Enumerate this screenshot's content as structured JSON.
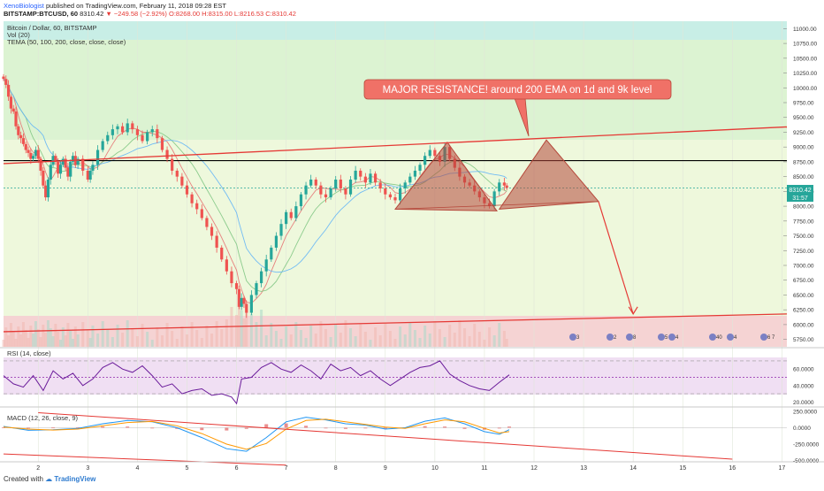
{
  "header": {
    "author": "XenoBiologist",
    "published_text": "published on TradingView.com, February 11, 2018 09:28 EST",
    "symbol": "BITSTAMP:BTCUSD, 60",
    "last": "8310.42",
    "change": "−249.58 (−2.92%)",
    "ohlc": "O:8268.00 H:8315.00 L:8216.53 C:8310.42"
  },
  "legend": {
    "title": "Bitcoin / Dollar, 60, BITSTAMP",
    "vol": "Vol (20)",
    "tema": "TEMA (50, 100, 200, close, close, close)"
  },
  "annotation": "MAJOR RESISTANCE! around 200 EMA on 1d and 9k level",
  "price_axis": {
    "ticks": [
      "11000.00",
      "10750.00",
      "10500.00",
      "10250.00",
      "10000.00",
      "9750.00",
      "9500.00",
      "9250.00",
      "9000.00",
      "8750.00",
      "8500.00",
      "8250.00",
      "8000.00",
      "7750.00",
      "7500.00",
      "7250.00",
      "7000.00",
      "6750.00",
      "6500.00",
      "6250.00",
      "6000.00",
      "5750.00"
    ],
    "last_label": "8310.42",
    "countdown": "31:57"
  },
  "rsi": {
    "title": "RSI (14, close)",
    "ticks": [
      "60.0000",
      "40.0000",
      "20.0000"
    ]
  },
  "macd": {
    "title": "MACD (12, 26, close, 9)",
    "ticks": [
      "250.0000",
      "0.0000",
      "-250.0000",
      "-500.0000"
    ]
  },
  "time_axis": [
    "2",
    "3",
    "4",
    "5",
    "6",
    "7",
    "8",
    "9",
    "10",
    "11",
    "12",
    "13",
    "14",
    "15",
    "16",
    "17"
  ],
  "events": [
    "3",
    "2",
    "8",
    "5",
    "4",
    "40",
    "4",
    "6 7"
  ],
  "footer": {
    "created": "Created with",
    "brand": "TradingView"
  },
  "colors": {
    "bull": "#26a69a",
    "bear": "#ef5350",
    "annotation_bg": "#f07167",
    "pattern": "#b5473a",
    "rsi": "#6a1b9a",
    "macd": "#2196f3",
    "signal": "#ff9800"
  },
  "chart_data": {
    "type": "candlestick",
    "y_range": [
      5625,
      11125
    ],
    "x_range": [
      1.3,
      17.1
    ],
    "closes": [
      [
        1.3,
        10150
      ],
      [
        1.35,
        10050
      ],
      [
        1.4,
        9850
      ],
      [
        1.45,
        9650
      ],
      [
        1.5,
        9600
      ],
      [
        1.55,
        9350
      ],
      [
        1.6,
        9200
      ],
      [
        1.65,
        9150
      ],
      [
        1.7,
        9050
      ],
      [
        1.75,
        8950
      ],
      [
        1.8,
        8900
      ],
      [
        1.85,
        8800
      ],
      [
        1.9,
        8850
      ],
      [
        1.95,
        8950
      ],
      [
        2.0,
        8800
      ],
      [
        2.05,
        8600
      ],
      [
        2.1,
        8350
      ],
      [
        2.15,
        8150
      ],
      [
        2.2,
        8450
      ],
      [
        2.25,
        8700
      ],
      [
        2.3,
        8850
      ],
      [
        2.35,
        8750
      ],
      [
        2.4,
        8550
      ],
      [
        2.45,
        8700
      ],
      [
        2.5,
        8800
      ],
      [
        2.55,
        8650
      ],
      [
        2.6,
        8500
      ],
      [
        2.65,
        8750
      ],
      [
        2.7,
        8850
      ],
      [
        2.75,
        8700
      ],
      [
        2.8,
        8800
      ],
      [
        2.9,
        8600
      ],
      [
        3.0,
        8450
      ],
      [
        3.05,
        8600
      ],
      [
        3.1,
        8700
      ],
      [
        3.2,
        8950
      ],
      [
        3.3,
        9100
      ],
      [
        3.4,
        9200
      ],
      [
        3.5,
        9300
      ],
      [
        3.6,
        9350
      ],
      [
        3.7,
        9250
      ],
      [
        3.8,
        9400
      ],
      [
        3.9,
        9300
      ],
      [
        4.0,
        9200
      ],
      [
        4.1,
        9100
      ],
      [
        4.2,
        9250
      ],
      [
        4.3,
        9300
      ],
      [
        4.4,
        9150
      ],
      [
        4.5,
        8950
      ],
      [
        4.6,
        8800
      ],
      [
        4.7,
        8600
      ],
      [
        4.8,
        8500
      ],
      [
        4.9,
        8350
      ],
      [
        5.0,
        8200
      ],
      [
        5.1,
        8050
      ],
      [
        5.2,
        7950
      ],
      [
        5.3,
        7800
      ],
      [
        5.4,
        7650
      ],
      [
        5.5,
        7500
      ],
      [
        5.6,
        7300
      ],
      [
        5.7,
        7100
      ],
      [
        5.8,
        6900
      ],
      [
        5.9,
        6700
      ],
      [
        6.0,
        6600
      ],
      [
        6.05,
        6300
      ],
      [
        6.1,
        6450
      ],
      [
        6.15,
        6350
      ],
      [
        6.2,
        6200
      ],
      [
        6.3,
        6500
      ],
      [
        6.4,
        6700
      ],
      [
        6.5,
        6900
      ],
      [
        6.6,
        7100
      ],
      [
        6.7,
        7300
      ],
      [
        6.8,
        7500
      ],
      [
        6.9,
        7700
      ],
      [
        7.0,
        7900
      ],
      [
        7.1,
        7800
      ],
      [
        7.2,
        8000
      ],
      [
        7.3,
        8200
      ],
      [
        7.4,
        8350
      ],
      [
        7.5,
        8450
      ],
      [
        7.6,
        8350
      ],
      [
        7.7,
        8200
      ],
      [
        7.8,
        8150
      ],
      [
        7.9,
        8300
      ],
      [
        8.0,
        8450
      ],
      [
        8.1,
        8300
      ],
      [
        8.2,
        8200
      ],
      [
        8.3,
        8450
      ],
      [
        8.4,
        8600
      ],
      [
        8.5,
        8500
      ],
      [
        8.6,
        8400
      ],
      [
        8.7,
        8550
      ],
      [
        8.8,
        8400
      ],
      [
        8.9,
        8300
      ],
      [
        9.0,
        8200
      ],
      [
        9.1,
        8150
      ],
      [
        9.2,
        8100
      ],
      [
        9.3,
        8300
      ],
      [
        9.4,
        8400
      ],
      [
        9.5,
        8500
      ],
      [
        9.6,
        8600
      ],
      [
        9.7,
        8700
      ],
      [
        9.8,
        8850
      ],
      [
        9.9,
        8950
      ],
      [
        10.0,
        8850
      ],
      [
        10.1,
        8750
      ],
      [
        10.2,
        9000
      ],
      [
        10.3,
        8800
      ],
      [
        10.4,
        8650
      ],
      [
        10.5,
        8500
      ],
      [
        10.6,
        8400
      ],
      [
        10.7,
        8350
      ],
      [
        10.8,
        8250
      ],
      [
        10.9,
        8150
      ],
      [
        11.0,
        8050
      ],
      [
        11.1,
        8000
      ],
      [
        11.2,
        8250
      ],
      [
        11.3,
        8400
      ],
      [
        11.4,
        8350
      ],
      [
        11.45,
        8310
      ]
    ],
    "tema_lines": {
      "tema_50_color": "#e57373",
      "tema_100_color": "#81c784",
      "tema_200_color": "#64b5f6"
    },
    "horizontal_lines": [
      {
        "price": 8770,
        "color": "#000000"
      },
      {
        "price": 8310,
        "color": "#26a69a",
        "style": "dashed"
      }
    ],
    "trendlines": [
      {
        "from": [
          1.3,
          8720
        ],
        "to": [
          17.1,
          9340
        ],
        "color": "#e53935"
      },
      {
        "from": [
          1.3,
          5880
        ],
        "to": [
          17.1,
          6180
        ],
        "color": "#e53935"
      }
    ],
    "patterns": [
      {
        "points": [
          [
            9.2,
            7950
          ],
          [
            10.25,
            9080
          ],
          [
            11.25,
            7920
          ]
        ]
      },
      {
        "points": [
          [
            11.3,
            7950
          ],
          [
            12.25,
            9120
          ],
          [
            13.3,
            8080
          ]
        ]
      }
    ],
    "arrow": {
      "from": [
        13.3,
        8080
      ],
      "to": [
        14.0,
        6180
      ]
    },
    "rsi_range": [
      15,
      85
    ],
    "rsi_bands": [
      30,
      50,
      70
    ],
    "rsi": [
      [
        1.3,
        52
      ],
      [
        1.5,
        42
      ],
      [
        1.7,
        38
      ],
      [
        1.9,
        52
      ],
      [
        2.1,
        34
      ],
      [
        2.3,
        58
      ],
      [
        2.5,
        48
      ],
      [
        2.7,
        55
      ],
      [
        2.9,
        40
      ],
      [
        3.1,
        48
      ],
      [
        3.3,
        62
      ],
      [
        3.5,
        68
      ],
      [
        3.7,
        60
      ],
      [
        3.9,
        56
      ],
      [
        4.1,
        64
      ],
      [
        4.3,
        52
      ],
      [
        4.5,
        38
      ],
      [
        4.7,
        42
      ],
      [
        4.9,
        30
      ],
      [
        5.1,
        34
      ],
      [
        5.3,
        36
      ],
      [
        5.5,
        28
      ],
      [
        5.7,
        30
      ],
      [
        5.9,
        26
      ],
      [
        6.0,
        18
      ],
      [
        6.1,
        48
      ],
      [
        6.3,
        50
      ],
      [
        6.5,
        62
      ],
      [
        6.7,
        68
      ],
      [
        6.9,
        60
      ],
      [
        7.1,
        56
      ],
      [
        7.3,
        65
      ],
      [
        7.5,
        58
      ],
      [
        7.7,
        48
      ],
      [
        7.9,
        66
      ],
      [
        8.1,
        58
      ],
      [
        8.3,
        62
      ],
      [
        8.5,
        52
      ],
      [
        8.7,
        58
      ],
      [
        8.9,
        48
      ],
      [
        9.1,
        40
      ],
      [
        9.3,
        48
      ],
      [
        9.5,
        56
      ],
      [
        9.7,
        62
      ],
      [
        9.9,
        64
      ],
      [
        10.1,
        70
      ],
      [
        10.3,
        54
      ],
      [
        10.5,
        46
      ],
      [
        10.7,
        40
      ],
      [
        10.9,
        36
      ],
      [
        11.1,
        34
      ],
      [
        11.3,
        44
      ],
      [
        11.5,
        53
      ]
    ],
    "macd_range": [
      -520,
      290
    ],
    "macd": [
      [
        1.3,
        20
      ],
      [
        1.8,
        -40
      ],
      [
        2.3,
        -30
      ],
      [
        2.8,
        -10
      ],
      [
        3.3,
        60
      ],
      [
        3.8,
        110
      ],
      [
        4.3,
        90
      ],
      [
        4.8,
        0
      ],
      [
        5.3,
        -150
      ],
      [
        5.8,
        -320
      ],
      [
        6.2,
        -360
      ],
      [
        6.6,
        -150
      ],
      [
        7.0,
        90
      ],
      [
        7.4,
        160
      ],
      [
        7.8,
        120
      ],
      [
        8.2,
        60
      ],
      [
        8.6,
        40
      ],
      [
        9.0,
        -20
      ],
      [
        9.4,
        0
      ],
      [
        9.8,
        100
      ],
      [
        10.2,
        150
      ],
      [
        10.6,
        60
      ],
      [
        11.0,
        -60
      ],
      [
        11.3,
        -100
      ],
      [
        11.5,
        -30
      ]
    ],
    "signal": [
      [
        1.3,
        10
      ],
      [
        1.8,
        -20
      ],
      [
        2.3,
        -35
      ],
      [
        2.8,
        -20
      ],
      [
        3.3,
        30
      ],
      [
        3.8,
        80
      ],
      [
        4.3,
        95
      ],
      [
        4.8,
        30
      ],
      [
        5.3,
        -90
      ],
      [
        5.8,
        -250
      ],
      [
        6.2,
        -330
      ],
      [
        6.6,
        -240
      ],
      [
        7.0,
        -20
      ],
      [
        7.4,
        110
      ],
      [
        7.8,
        130
      ],
      [
        8.2,
        90
      ],
      [
        8.6,
        50
      ],
      [
        9.0,
        10
      ],
      [
        9.4,
        -10
      ],
      [
        9.8,
        60
      ],
      [
        10.2,
        120
      ],
      [
        10.6,
        90
      ],
      [
        11.0,
        -10
      ],
      [
        11.3,
        -80
      ],
      [
        11.5,
        -60
      ]
    ],
    "macd_trendlines": [
      {
        "from": [
          2.0,
          230
        ],
        "to": [
          16.0,
          -480
        ],
        "color": "#e53935"
      },
      {
        "from": [
          1.3,
          -400
        ],
        "to": [
          7.0,
          -570
        ],
        "color": "#e53935"
      }
    ]
  }
}
